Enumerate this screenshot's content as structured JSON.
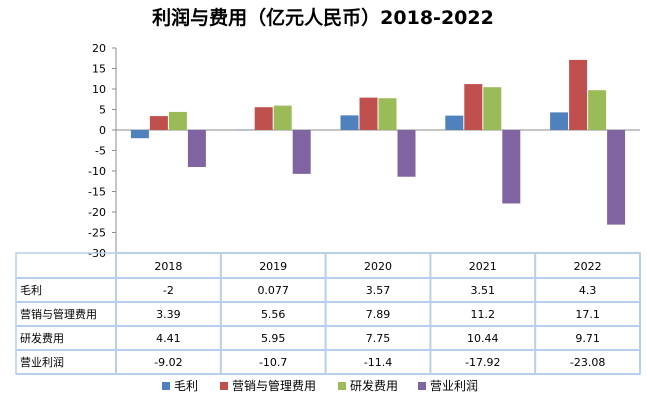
{
  "chart_data": {
    "type": "bar",
    "title": "利润与费用（亿元人民币）2018-2022",
    "categories": [
      "2018",
      "2019",
      "2020",
      "2021",
      "2022"
    ],
    "ylim": [
      -30,
      20
    ],
    "yticks": [
      20,
      15,
      10,
      5,
      0,
      -5,
      -10,
      -15,
      -20,
      -25,
      -30
    ],
    "grid": false,
    "legend_position": "bottom",
    "data_table": true,
    "series": [
      {
        "name": "毛利",
        "color": "#4F81BD",
        "values": [
          -2,
          0.077,
          3.57,
          3.51,
          4.3
        ],
        "labels": [
          "-2",
          "0.077",
          "3.57",
          "3.51",
          "4.3"
        ]
      },
      {
        "name": "营销与管理费用",
        "color": "#C0504D",
        "values": [
          3.39,
          5.56,
          7.89,
          11.2,
          17.1
        ],
        "labels": [
          "3.39",
          "5.56",
          "7.89",
          "11.2",
          "17.1"
        ]
      },
      {
        "name": "研发费用",
        "color": "#9BBB59",
        "values": [
          4.41,
          5.95,
          7.75,
          10.44,
          9.71
        ],
        "labels": [
          "4.41",
          "5.95",
          "7.75",
          "10.44",
          "9.71"
        ]
      },
      {
        "name": "营业利润",
        "color": "#8064A2",
        "values": [
          -9.02,
          -10.7,
          -11.4,
          -17.92,
          -23.08
        ],
        "labels": [
          "-9.02",
          "-10.7",
          "-11.4",
          "-17.92",
          "-23.08"
        ]
      }
    ]
  }
}
